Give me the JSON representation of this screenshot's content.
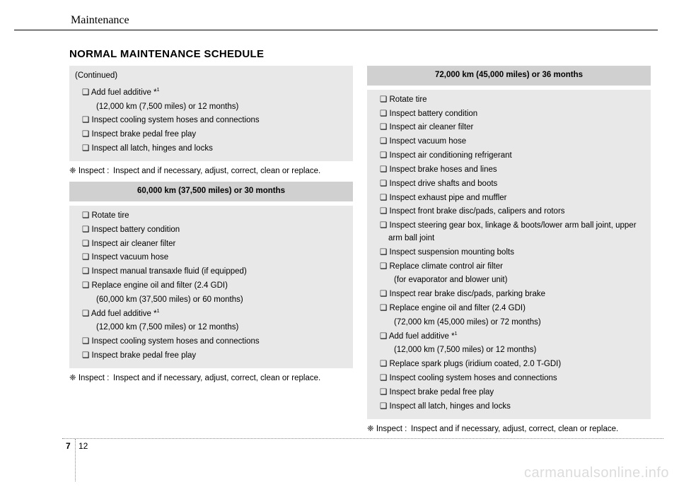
{
  "header": "Maintenance",
  "title": "NORMAL MAINTENANCE SCHEDULE",
  "left": {
    "continued": "(Continued)",
    "box1": {
      "items": [
        {
          "t": "❑ Add fuel additive *",
          "sup": "1"
        },
        {
          "t": "(12,000 km (7,500 miles) or 12 months)",
          "sub": true
        },
        {
          "t": "❑ Inspect cooling system hoses and connections"
        },
        {
          "t": "❑ Inspect brake pedal free play"
        },
        {
          "t": "❑ Inspect all latch, hinges and locks"
        }
      ]
    },
    "footnote_sym": "❈ Inspect :",
    "footnote_text": "Inspect and if necessary, adjust, correct, clean or replace.",
    "section_header": "60,000 km (37,500 miles) or 30 months",
    "box2": {
      "items": [
        {
          "t": "❑ Rotate tire"
        },
        {
          "t": "❑ Inspect battery condition"
        },
        {
          "t": "❑ Inspect air cleaner filter"
        },
        {
          "t": "❑ Inspect vacuum hose"
        },
        {
          "t": "❑ Inspect manual transaxle fluid (if equipped)"
        },
        {
          "t": "❑ Replace engine oil and filter (2.4 GDI)"
        },
        {
          "t": "(60,000 km (37,500 miles) or 60 months)",
          "sub": true
        },
        {
          "t": "❑ Add fuel additive *",
          "sup": "1"
        },
        {
          "t": "(12,000 km (7,500 miles) or 12 months)",
          "sub": true
        },
        {
          "t": "❑ Inspect cooling system hoses and connections"
        },
        {
          "t": "❑ Inspect brake pedal free play"
        }
      ]
    }
  },
  "right": {
    "section_header": "72,000 km (45,000 miles) or 36 months",
    "box1": {
      "items": [
        {
          "t": "❑ Rotate tire"
        },
        {
          "t": "❑ Inspect battery condition"
        },
        {
          "t": "❑ Inspect air cleaner filter"
        },
        {
          "t": "❑ Inspect vacuum hose"
        },
        {
          "t": "❑ Inspect air conditioning refrigerant"
        },
        {
          "t": "❑ Inspect brake hoses and lines"
        },
        {
          "t": "❑ Inspect drive shafts and boots"
        },
        {
          "t": "❑ Inspect exhaust pipe and muffler"
        },
        {
          "t": "❑ Inspect front brake disc/pads, calipers and rotors"
        },
        {
          "t": "❑ Inspect steering gear box, linkage & boots/lower arm ball joint, upper arm ball joint"
        },
        {
          "t": "❑ Inspect suspension mounting bolts"
        },
        {
          "t": "❑ Replace climate control air filter"
        },
        {
          "t": "(for evaporator and blower unit)",
          "sub": true
        },
        {
          "t": "❑ Inspect rear brake disc/pads, parking brake"
        },
        {
          "t": "❑ Replace engine oil and filter (2.4 GDI)"
        },
        {
          "t": "(72,000 km (45,000 miles) or 72 months)",
          "sub": true
        },
        {
          "t": "❑ Add fuel additive *",
          "sup": "1"
        },
        {
          "t": "(12,000 km (7,500 miles) or 12 months)",
          "sub": true
        },
        {
          "t": "❑ Replace spark plugs (iridium coated, 2.0 T-GDI)"
        },
        {
          "t": "❑ Inspect cooling system hoses and connections"
        },
        {
          "t": "❑ Inspect brake pedal free play"
        },
        {
          "t": "❑ Inspect all latch, hinges and locks"
        }
      ]
    },
    "footnote_sym": "❈ Inspect :",
    "footnote_text": "Inspect and if necessary, adjust, correct, clean or replace."
  },
  "pagenum": {
    "chapter": "7",
    "page": "12"
  },
  "watermark": "carmanualsonline.info"
}
